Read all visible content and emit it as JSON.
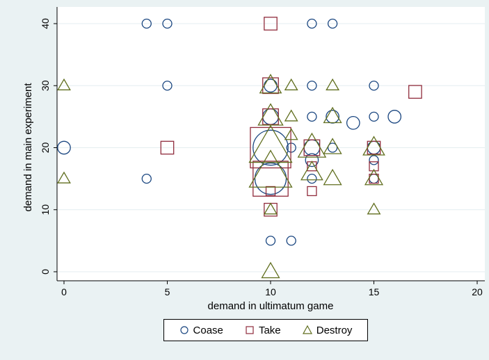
{
  "chart_data": {
    "type": "scatter",
    "title": "",
    "xlabel": "demand in ultimatum game",
    "ylabel": "demand in main experiment",
    "xlim": [
      0,
      20
    ],
    "ylim": [
      0,
      40
    ],
    "xticks": [
      0,
      5,
      10,
      15,
      20
    ],
    "yticks": [
      0,
      10,
      20,
      30,
      40
    ],
    "grid": "horizontal",
    "legend_position": "bottom",
    "marker_size_encodes": "number of observations",
    "series": [
      {
        "name": "Coase",
        "marker": "circle",
        "color": "#1a4680",
        "points": [
          {
            "x": 0,
            "y": 20,
            "n": 2
          },
          {
            "x": 4,
            "y": 15,
            "n": 1
          },
          {
            "x": 4,
            "y": 40,
            "n": 1
          },
          {
            "x": 5,
            "y": 40,
            "n": 1
          },
          {
            "x": 5,
            "y": 30,
            "n": 1
          },
          {
            "x": 10,
            "y": 30,
            "n": 2
          },
          {
            "x": 10,
            "y": 25,
            "n": 3
          },
          {
            "x": 10,
            "y": 20,
            "n": 15
          },
          {
            "x": 10,
            "y": 15,
            "n": 12
          },
          {
            "x": 10,
            "y": 5,
            "n": 1
          },
          {
            "x": 11,
            "y": 5,
            "n": 1
          },
          {
            "x": 11,
            "y": 20,
            "n": 1
          },
          {
            "x": 12,
            "y": 40,
            "n": 1
          },
          {
            "x": 12,
            "y": 30,
            "n": 1
          },
          {
            "x": 12,
            "y": 25,
            "n": 1
          },
          {
            "x": 12,
            "y": 20,
            "n": 3
          },
          {
            "x": 12,
            "y": 18,
            "n": 2
          },
          {
            "x": 12,
            "y": 15,
            "n": 1
          },
          {
            "x": 13,
            "y": 40,
            "n": 1
          },
          {
            "x": 13,
            "y": 25,
            "n": 2
          },
          {
            "x": 13,
            "y": 20,
            "n": 1
          },
          {
            "x": 14,
            "y": 24,
            "n": 2
          },
          {
            "x": 15,
            "y": 30,
            "n": 1
          },
          {
            "x": 15,
            "y": 25,
            "n": 1
          },
          {
            "x": 15,
            "y": 20,
            "n": 2
          },
          {
            "x": 15,
            "y": 18,
            "n": 1
          },
          {
            "x": 15,
            "y": 15,
            "n": 1
          },
          {
            "x": 16,
            "y": 25,
            "n": 2
          }
        ]
      },
      {
        "name": "Take",
        "marker": "square",
        "color": "#902c3c",
        "points": [
          {
            "x": 5,
            "y": 20,
            "n": 2
          },
          {
            "x": 10,
            "y": 40,
            "n": 2
          },
          {
            "x": 10,
            "y": 30,
            "n": 3
          },
          {
            "x": 10,
            "y": 25,
            "n": 3
          },
          {
            "x": 10,
            "y": 20,
            "n": 20
          },
          {
            "x": 10,
            "y": 15,
            "n": 15
          },
          {
            "x": 10,
            "y": 13,
            "n": 1
          },
          {
            "x": 10,
            "y": 10,
            "n": 2
          },
          {
            "x": 12,
            "y": 20,
            "n": 3
          },
          {
            "x": 12,
            "y": 17,
            "n": 1
          },
          {
            "x": 12,
            "y": 13,
            "n": 1
          },
          {
            "x": 15,
            "y": 20,
            "n": 2
          },
          {
            "x": 15,
            "y": 17,
            "n": 1
          },
          {
            "x": 15,
            "y": 15,
            "n": 1
          },
          {
            "x": 17,
            "y": 29,
            "n": 2
          }
        ]
      },
      {
        "name": "Destroy",
        "marker": "triangle",
        "color": "#606e1e",
        "points": [
          {
            "x": 0,
            "y": 30,
            "n": 1
          },
          {
            "x": 0,
            "y": 15,
            "n": 1
          },
          {
            "x": 10,
            "y": 30,
            "n": 3
          },
          {
            "x": 10,
            "y": 25,
            "n": 4
          },
          {
            "x": 10,
            "y": 20,
            "n": 12
          },
          {
            "x": 10,
            "y": 16,
            "n": 12
          },
          {
            "x": 10,
            "y": 10,
            "n": 1
          },
          {
            "x": 10,
            "y": 0,
            "n": 2
          },
          {
            "x": 11,
            "y": 30,
            "n": 1
          },
          {
            "x": 11,
            "y": 25,
            "n": 1
          },
          {
            "x": 11,
            "y": 22,
            "n": 1
          },
          {
            "x": 12,
            "y": 20,
            "n": 5
          },
          {
            "x": 12,
            "y": 16,
            "n": 3
          },
          {
            "x": 13,
            "y": 30,
            "n": 1
          },
          {
            "x": 13,
            "y": 25,
            "n": 2
          },
          {
            "x": 13,
            "y": 20,
            "n": 2
          },
          {
            "x": 13,
            "y": 15,
            "n": 2
          },
          {
            "x": 15,
            "y": 20,
            "n": 3
          },
          {
            "x": 15,
            "y": 15,
            "n": 2
          },
          {
            "x": 15,
            "y": 10,
            "n": 1
          }
        ]
      }
    ]
  }
}
